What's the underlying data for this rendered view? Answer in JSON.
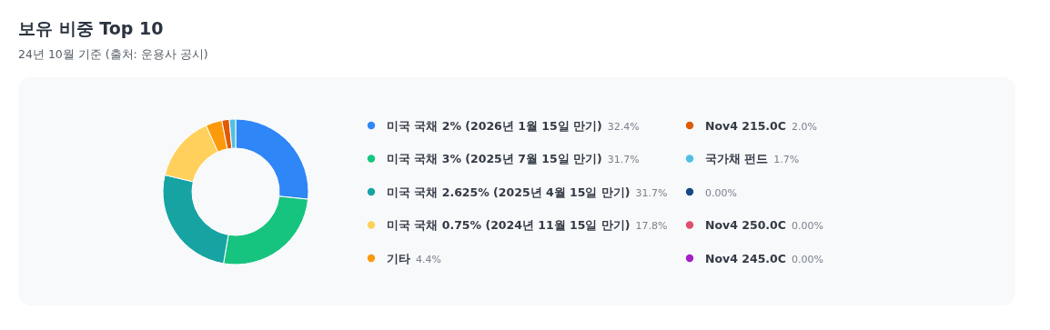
{
  "chart_data": {
    "type": "donut",
    "title": "보유 비중 Top 10",
    "subtitle": "24년 10월 기준 (출처: 운용사 공시)",
    "categories": [
      "미국 국채 2% (2026년 1월 15일 만기)",
      "미국 국채 3% (2025년 7월 15일 만기)",
      "미국 국채 2.625% (2025년 4월 15일 만기)",
      "미국 국채 0.75% (2024년 11월 15일 만기)",
      "기타",
      "Nov4 215.0C",
      "국가채 펀드",
      null,
      "Nov4 250.0C",
      "Nov4 245.0C"
    ],
    "values": [
      32.4,
      31.7,
      31.7,
      17.8,
      4.4,
      2.0,
      1.7,
      0,
      0,
      0
    ],
    "value_labels": [
      "32.4%",
      "31.7%",
      "31.7%",
      "17.8%",
      "4.4%",
      "2.0%",
      "1.7%",
      "0.00%",
      "0.00%",
      "0.00%"
    ],
    "colors": [
      "#2f86f6",
      "#17c47f",
      "#18a3a3",
      "#ffd15c",
      "#fb9a0a",
      "#df5a05",
      "#52bfe3",
      "#144a86",
      "#e04f6d",
      "#a51fc7"
    ],
    "legend": "right"
  }
}
